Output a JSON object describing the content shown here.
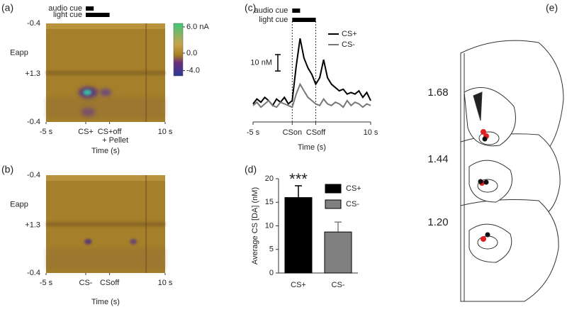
{
  "chart_data": [
    {
      "type": "heatmap",
      "panel_label": "(a)",
      "xlim": [
        -5,
        10
      ],
      "xticks": [
        {
          "value": -5,
          "label": "-5 s"
        },
        {
          "value": 0,
          "label": "CS+"
        },
        {
          "value": 3,
          "label": "CS+off"
        },
        {
          "value": 10,
          "label": "10 s"
        }
      ],
      "xlabel": "Time (s)",
      "ylabel": "Eapp",
      "ylabels": [
        "-0.4",
        "+1.3",
        "-0.4"
      ],
      "annotation": "+ Pellet",
      "cues": [
        {
          "label": "audio cue",
          "start": 0,
          "end": 1
        },
        {
          "label": "light cue",
          "start": 0,
          "end": 3
        }
      ],
      "colorbar": {
        "clim": [
          -5.2,
          6.8
        ],
        "ticks": [
          {
            "value": 6,
            "label": "6.0 nA"
          },
          {
            "value": 0,
            "label": "0.0"
          },
          {
            "value": -4,
            "label": "-4.0"
          }
        ]
      }
    },
    {
      "type": "heatmap",
      "panel_label": "(b)",
      "xlim": [
        -5,
        10
      ],
      "xticks": [
        {
          "value": -5,
          "label": "-5 s"
        },
        {
          "value": 0,
          "label": "CS-"
        },
        {
          "value": 3,
          "label": "CSoff"
        },
        {
          "value": 10,
          "label": "10 s"
        }
      ],
      "xlabel": "Time (s)",
      "ylabel": "Eapp",
      "ylabels": [
        "-0.4",
        "+1.3",
        "-0.4"
      ]
    },
    {
      "type": "line",
      "panel_label": "(c)",
      "xlim": [
        -5,
        10
      ],
      "ylim": [
        -6,
        46
      ],
      "xticks": [
        {
          "value": -5,
          "label": "-5 s"
        },
        {
          "value": 0,
          "label": "CSon"
        },
        {
          "value": 3,
          "label": "CSoff"
        },
        {
          "value": 10,
          "label": "10 s"
        }
      ],
      "xlabel": "Time (s)",
      "cues": [
        {
          "label": "audio cue",
          "start": 0,
          "end": 1
        },
        {
          "label": "light cue",
          "start": 0,
          "end": 3
        }
      ],
      "scale_bar": {
        "value": 10,
        "label": "10 nM"
      },
      "x": [
        -5,
        -4.5,
        -4,
        -3.5,
        -3,
        -2.5,
        -2,
        -1.5,
        -1,
        -0.5,
        0,
        0.5,
        1,
        1.5,
        2,
        2.5,
        3,
        3.5,
        4,
        4.5,
        5,
        5.5,
        6,
        6.5,
        7,
        7.5,
        8,
        8.5,
        9,
        9.5,
        10
      ],
      "series": [
        {
          "name": "CS+",
          "color": "#000000",
          "values": [
            2,
            5,
            3,
            6,
            4,
            1,
            5,
            3,
            6,
            2,
            4,
            25,
            42,
            30,
            24,
            20,
            14,
            18,
            29,
            18,
            14,
            12,
            10,
            11,
            8,
            9,
            8,
            10,
            6,
            9,
            4
          ]
        },
        {
          "name": "CS-",
          "color": "#777777",
          "values": [
            1,
            3,
            0,
            2,
            4,
            1,
            0,
            3,
            2,
            1,
            0,
            8,
            14,
            10,
            6,
            4,
            2,
            1,
            5,
            2,
            1,
            3,
            2,
            0,
            4,
            1,
            3,
            2,
            0,
            2,
            1
          ]
        }
      ]
    },
    {
      "type": "bar",
      "panel_label": "(d)",
      "categories": [
        "CS+",
        "CS-"
      ],
      "values": [
        16,
        8.7
      ],
      "errors": [
        2.5,
        2.1
      ],
      "colors": [
        "#000000",
        "#808080"
      ],
      "ylim": [
        0,
        20
      ],
      "yticks": [
        0,
        5,
        10,
        15,
        20
      ],
      "ylabel": "Average CS [DA] (nM)",
      "annotation": "***"
    }
  ],
  "atlas": {
    "panel_label": "(e)",
    "levels": [
      "1.68",
      "1.44",
      "1.20"
    ]
  }
}
